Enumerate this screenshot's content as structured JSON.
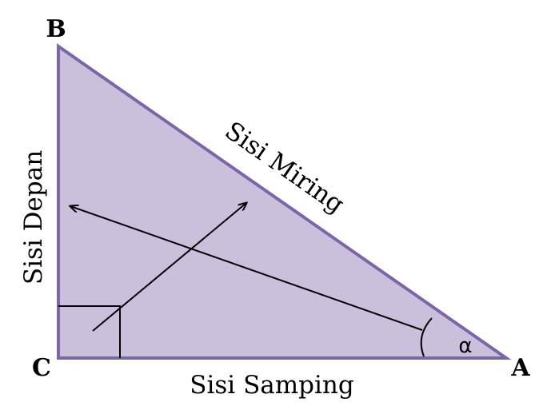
{
  "vertices": {
    "A": "A",
    "B": "B",
    "C": "C"
  },
  "sides": {
    "opposite": "Sisi Depan",
    "hypotenuse": "Sisi Miring",
    "adjacent": "Sisi Samping"
  },
  "angle": {
    "symbol": "α"
  },
  "colors": {
    "triangle_fill": "#cbc0dc",
    "triangle_stroke": "#7a66a8",
    "line": "#000000",
    "text": "#000000"
  }
}
